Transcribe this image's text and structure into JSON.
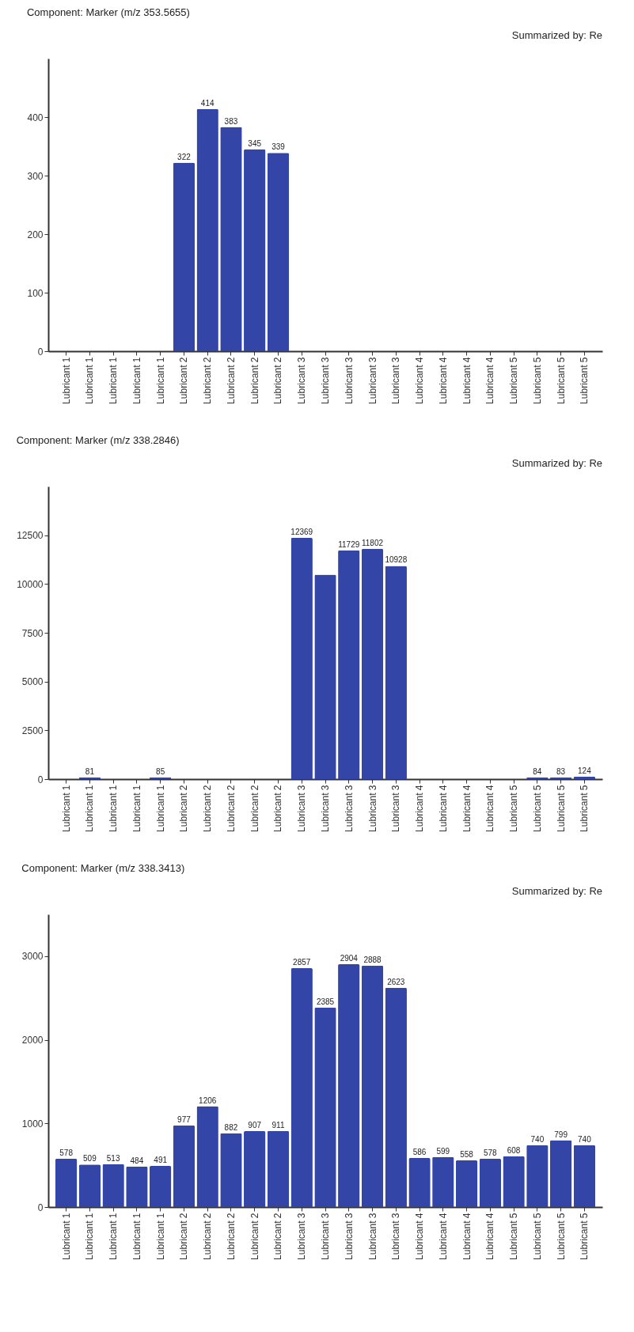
{
  "chart_data": [
    {
      "type": "bar",
      "title": "Component: Marker (m/z 353.5655)",
      "subtitle": "Summarized by: Re",
      "categories": [
        "Lubricant 1",
        "Lubricant 1",
        "Lubricant 1",
        "Lubricant 1",
        "Lubricant 1",
        "Lubricant 2",
        "Lubricant 2",
        "Lubricant 2",
        "Lubricant 2",
        "Lubricant 2",
        "Lubricant 3",
        "Lubricant 3",
        "Lubricant 3",
        "Lubricant 3",
        "Lubricant 3",
        "Lubricant 4",
        "Lubricant 4",
        "Lubricant 4",
        "Lubricant 4",
        "Lubricant 5",
        "Lubricant 5",
        "Lubricant 5",
        "Lubricant 5"
      ],
      "values": [
        0,
        0,
        0,
        0,
        0,
        322,
        414,
        383,
        345,
        339,
        0,
        0,
        0,
        0,
        0,
        0,
        0,
        0,
        0,
        0,
        0,
        0,
        0
      ],
      "value_labels": [
        null,
        null,
        null,
        null,
        null,
        "322",
        "414",
        "383",
        "345",
        "339",
        null,
        null,
        null,
        null,
        null,
        null,
        null,
        null,
        null,
        null,
        null,
        null,
        null
      ],
      "color": "#3346a8",
      "ylim": [
        0,
        500
      ],
      "yticks": [
        0,
        100,
        200,
        300,
        400
      ]
    },
    {
      "type": "bar",
      "title": "Component: Marker (m/z 338.2846)",
      "subtitle": "Summarized by: Re",
      "categories": [
        "Lubricant 1",
        "Lubricant 1",
        "Lubricant 1",
        "Lubricant 1",
        "Lubricant 1",
        "Lubricant 2",
        "Lubricant 2",
        "Lubricant 2",
        "Lubricant 2",
        "Lubricant 2",
        "Lubricant 3",
        "Lubricant 3",
        "Lubricant 3",
        "Lubricant 3",
        "Lubricant 3",
        "Lubricant 4",
        "Lubricant 4",
        "Lubricant 4",
        "Lubricant 4",
        "Lubricant 5",
        "Lubricant 5",
        "Lubricant 5",
        "Lubricant 5"
      ],
      "values": [
        0,
        81,
        0,
        0,
        85,
        0,
        0,
        0,
        0,
        0,
        12369,
        10480,
        11729,
        11802,
        10928,
        0,
        0,
        0,
        0,
        0,
        84,
        83,
        124
      ],
      "value_labels": [
        null,
        "81",
        null,
        null,
        "85",
        null,
        null,
        null,
        null,
        null,
        "12369",
        null,
        "11729",
        "11802",
        "10928",
        null,
        null,
        null,
        null,
        null,
        "84",
        "83",
        "124"
      ],
      "color": "#3346a8",
      "ylim": [
        0,
        15000
      ],
      "yticks": [
        0,
        2500,
        5000,
        7500,
        10000,
        12500
      ]
    },
    {
      "type": "bar",
      "title": "Component: Marker (m/z 338.3413)",
      "subtitle": "Summarized by: Re",
      "categories": [
        "Lubricant 1",
        "Lubricant 1",
        "Lubricant 1",
        "Lubricant 1",
        "Lubricant 1",
        "Lubricant 2",
        "Lubricant 2",
        "Lubricant 2",
        "Lubricant 2",
        "Lubricant 2",
        "Lubricant 3",
        "Lubricant 3",
        "Lubricant 3",
        "Lubricant 3",
        "Lubricant 3",
        "Lubricant 4",
        "Lubricant 4",
        "Lubricant 4",
        "Lubricant 4",
        "Lubricant 5",
        "Lubricant 5",
        "Lubricant 5",
        "Lubricant 5"
      ],
      "values": [
        578,
        509,
        513,
        484,
        491,
        977,
        1206,
        882,
        907,
        911,
        2857,
        2385,
        2904,
        2888,
        2623,
        586,
        599,
        558,
        578,
        608,
        740,
        799,
        740
      ],
      "data_labels": true,
      "color": "#3346a8",
      "ylim": [
        0,
        3500
      ],
      "yticks": [
        0,
        1000,
        2000,
        3000
      ]
    }
  ]
}
